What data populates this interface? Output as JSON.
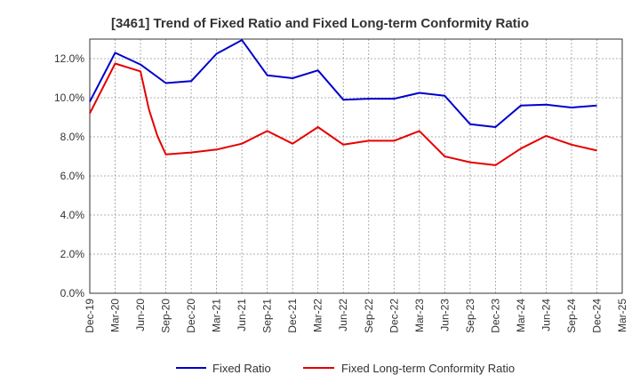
{
  "chart_data": {
    "type": "line",
    "title": "[3461]  Trend of Fixed Ratio and Fixed Long-term Conformity Ratio",
    "xlabel": "",
    "ylabel": "",
    "ylim": [
      0,
      13.0
    ],
    "y_ticks": [
      "0.0%",
      "2.0%",
      "4.0%",
      "6.0%",
      "8.0%",
      "10.0%",
      "12.0%"
    ],
    "y_tick_values": [
      0,
      2,
      4,
      6,
      8,
      10,
      12
    ],
    "x_ticks": [
      "Dec-19",
      "Mar-20",
      "Jun-20",
      "Sep-20",
      "Dec-20",
      "Mar-21",
      "Jun-21",
      "Sep-21",
      "Dec-21",
      "Mar-22",
      "Jun-22",
      "Sep-22",
      "Dec-22",
      "Mar-23",
      "Jun-23",
      "Sep-23",
      "Dec-23",
      "Mar-24",
      "Jun-24",
      "Sep-24",
      "Dec-24",
      "Mar-25"
    ],
    "grid": true,
    "legend_position": "bottom",
    "series": [
      {
        "name": "Fixed Ratio",
        "color": "#0000cc",
        "x": [
          "Dec-19",
          "Mar-20",
          "Jun-20",
          "Sep-20",
          "Dec-20",
          "Mar-21",
          "Jun-21",
          "Sep-21",
          "Dec-21",
          "Mar-22",
          "Jun-22",
          "Sep-22",
          "Dec-22",
          "Mar-23",
          "Jun-23",
          "Sep-23",
          "Dec-23",
          "Mar-24",
          "Jun-24",
          "Sep-24",
          "Dec-24"
        ],
        "values": [
          9.8,
          12.3,
          11.7,
          10.75,
          10.85,
          12.25,
          12.95,
          11.15,
          11.0,
          11.4,
          9.9,
          9.95,
          9.95,
          10.25,
          10.1,
          8.65,
          8.5,
          9.6,
          9.65,
          9.5,
          9.6
        ]
      },
      {
        "name": "Fixed Long-term Conformity Ratio",
        "color": "#e60000",
        "x": [
          "Dec-19",
          "Mar-20",
          "Jun-20",
          "Jul-20",
          "Aug-20",
          "Sep-20",
          "Dec-20",
          "Mar-21",
          "Jun-21",
          "Sep-21",
          "Dec-21",
          "Mar-22",
          "Jun-22",
          "Sep-22",
          "Dec-22",
          "Mar-23",
          "Jun-23",
          "Sep-23",
          "Dec-23",
          "Mar-24",
          "Jun-24",
          "Sep-24",
          "Dec-24"
        ],
        "values": [
          9.2,
          11.75,
          11.35,
          9.4,
          8.05,
          7.1,
          7.2,
          7.35,
          7.65,
          8.3,
          7.65,
          8.5,
          7.6,
          7.8,
          7.8,
          8.3,
          7.0,
          6.7,
          6.55,
          7.4,
          8.05,
          7.6,
          7.3
        ]
      }
    ]
  }
}
